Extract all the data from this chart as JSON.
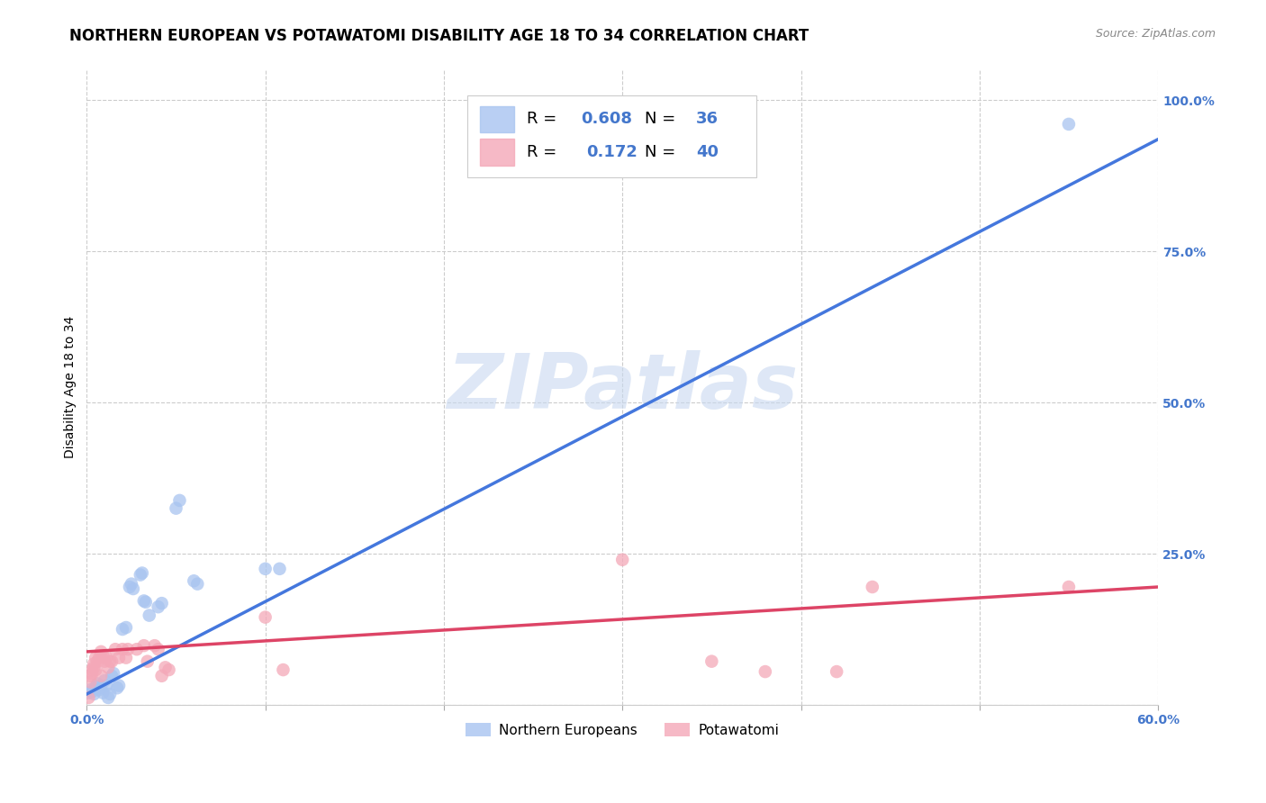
{
  "title": "NORTHERN EUROPEAN VS POTAWATOMI DISABILITY AGE 18 TO 34 CORRELATION CHART",
  "source": "Source: ZipAtlas.com",
  "ylabel_label": "Disability Age 18 to 34",
  "legend_blue_R": "0.608",
  "legend_blue_N": "36",
  "legend_pink_R": "0.172",
  "legend_pink_N": "40",
  "legend_labels": [
    "Northern Europeans",
    "Potawatomi"
  ],
  "watermark": "ZIPatlas",
  "blue_color": "#a8c4f0",
  "pink_color": "#f4a8b8",
  "blue_line_color": "#4477dd",
  "pink_line_color": "#dd4466",
  "blue_scatter": [
    [
      0.001,
      0.02
    ],
    [
      0.002,
      0.025
    ],
    [
      0.003,
      0.022
    ],
    [
      0.004,
      0.018
    ],
    [
      0.005,
      0.03
    ],
    [
      0.006,
      0.035
    ],
    [
      0.007,
      0.025
    ],
    [
      0.008,
      0.028
    ],
    [
      0.009,
      0.02
    ],
    [
      0.01,
      0.04
    ],
    [
      0.011,
      0.032
    ],
    [
      0.012,
      0.012
    ],
    [
      0.013,
      0.018
    ],
    [
      0.014,
      0.048
    ],
    [
      0.015,
      0.052
    ],
    [
      0.017,
      0.028
    ],
    [
      0.018,
      0.032
    ],
    [
      0.02,
      0.125
    ],
    [
      0.022,
      0.128
    ],
    [
      0.024,
      0.195
    ],
    [
      0.025,
      0.2
    ],
    [
      0.026,
      0.192
    ],
    [
      0.03,
      0.215
    ],
    [
      0.031,
      0.218
    ],
    [
      0.032,
      0.172
    ],
    [
      0.033,
      0.17
    ],
    [
      0.035,
      0.148
    ],
    [
      0.04,
      0.162
    ],
    [
      0.042,
      0.168
    ],
    [
      0.05,
      0.325
    ],
    [
      0.052,
      0.338
    ],
    [
      0.06,
      0.205
    ],
    [
      0.062,
      0.2
    ],
    [
      0.1,
      0.225
    ],
    [
      0.108,
      0.225
    ],
    [
      0.55,
      0.96
    ]
  ],
  "pink_scatter": [
    [
      0.001,
      0.012
    ],
    [
      0.002,
      0.038
    ],
    [
      0.002,
      0.048
    ],
    [
      0.003,
      0.058
    ],
    [
      0.003,
      0.052
    ],
    [
      0.004,
      0.062
    ],
    [
      0.004,
      0.068
    ],
    [
      0.005,
      0.058
    ],
    [
      0.005,
      0.078
    ],
    [
      0.006,
      0.072
    ],
    [
      0.007,
      0.078
    ],
    [
      0.008,
      0.088
    ],
    [
      0.008,
      0.048
    ],
    [
      0.009,
      0.082
    ],
    [
      0.01,
      0.072
    ],
    [
      0.011,
      0.078
    ],
    [
      0.012,
      0.062
    ],
    [
      0.013,
      0.072
    ],
    [
      0.014,
      0.072
    ],
    [
      0.016,
      0.092
    ],
    [
      0.018,
      0.078
    ],
    [
      0.02,
      0.092
    ],
    [
      0.022,
      0.078
    ],
    [
      0.023,
      0.092
    ],
    [
      0.028,
      0.092
    ],
    [
      0.032,
      0.098
    ],
    [
      0.034,
      0.072
    ],
    [
      0.038,
      0.098
    ],
    [
      0.04,
      0.092
    ],
    [
      0.042,
      0.048
    ],
    [
      0.044,
      0.062
    ],
    [
      0.046,
      0.058
    ],
    [
      0.1,
      0.145
    ],
    [
      0.11,
      0.058
    ],
    [
      0.3,
      0.24
    ],
    [
      0.35,
      0.072
    ],
    [
      0.38,
      0.055
    ],
    [
      0.42,
      0.055
    ],
    [
      0.44,
      0.195
    ],
    [
      0.55,
      0.195
    ]
  ],
  "xlim": [
    0.0,
    0.6
  ],
  "ylim": [
    0.0,
    1.05
  ],
  "blue_trendline_x": [
    0.0,
    0.6
  ],
  "blue_trendline_y": [
    0.018,
    0.935
  ],
  "pink_trendline_x": [
    0.0,
    0.6
  ],
  "pink_trendline_y": [
    0.088,
    0.195
  ],
  "xticks": [
    0.0,
    0.1,
    0.2,
    0.3,
    0.4,
    0.5,
    0.6
  ],
  "xtick_labels": [
    "0.0%",
    "",
    "",
    "",
    "",
    "",
    "60.0%"
  ],
  "yticks": [
    0.0,
    0.25,
    0.5,
    0.75,
    1.0
  ],
  "ytick_labels": [
    "",
    "25.0%",
    "50.0%",
    "75.0%",
    "100.0%"
  ],
  "title_fontsize": 12,
  "source_fontsize": 9,
  "tick_label_fontsize": 10,
  "tick_label_color": "#4477cc"
}
